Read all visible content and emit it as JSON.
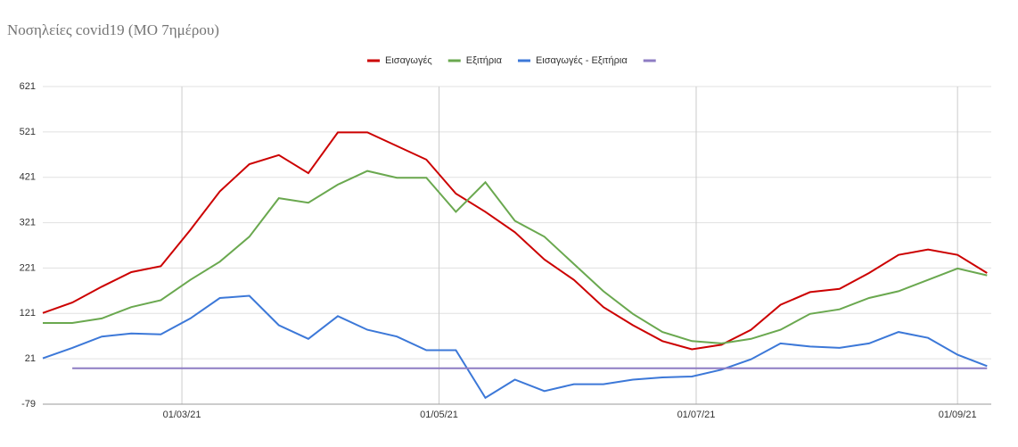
{
  "chart_data": {
    "type": "line",
    "title": "Νοσηλείες covid19 (ΜΟ 7ημέρου)",
    "x": [
      "27/01/21",
      "03/02/21",
      "10/02/21",
      "17/02/21",
      "24/02/21",
      "03/03/21",
      "10/03/21",
      "17/03/21",
      "24/03/21",
      "31/03/21",
      "07/04/21",
      "14/04/21",
      "21/04/21",
      "28/04/21",
      "05/05/21",
      "12/05/21",
      "19/05/21",
      "26/05/21",
      "02/06/21",
      "09/06/21",
      "16/06/21",
      "23/06/21",
      "30/06/21",
      "07/07/21",
      "14/07/21",
      "21/07/21",
      "28/07/21",
      "04/08/21",
      "11/08/21",
      "18/08/21",
      "25/08/21",
      "01/09/21",
      "08/09/21"
    ],
    "xlim": [
      "27/01/21",
      "09/09/21"
    ],
    "xticks": [
      "01/03/21",
      "01/05/21",
      "01/07/21",
      "01/09/21"
    ],
    "ylim": [
      -79,
      621
    ],
    "yticks": [
      -79,
      21,
      121,
      221,
      321,
      421,
      521,
      621
    ],
    "grid": true,
    "legend": "top",
    "series": [
      {
        "name": "Εισαγωγές",
        "color": "#cc0000",
        "values": [
          122,
          145,
          180,
          212,
          225,
          305,
          390,
          450,
          470,
          430,
          520,
          520,
          490,
          460,
          385,
          345,
          300,
          240,
          195,
          135,
          95,
          60,
          42,
          52,
          85,
          140,
          168,
          175,
          210,
          250,
          262,
          250,
          210
        ]
      },
      {
        "name": "Εξιτήρια",
        "color": "#6aa84f",
        "values": [
          100,
          100,
          110,
          135,
          150,
          195,
          235,
          290,
          375,
          365,
          405,
          435,
          420,
          420,
          345,
          410,
          325,
          290,
          230,
          170,
          120,
          80,
          60,
          55,
          65,
          85,
          120,
          130,
          155,
          170,
          195,
          220,
          205
        ]
      },
      {
        "name": "Εισαγωγές - Εξιτήρια",
        "color": "#3c78d8",
        "values": [
          22,
          45,
          70,
          77,
          75,
          110,
          155,
          160,
          95,
          65,
          115,
          85,
          70,
          40,
          40,
          -65,
          -25,
          -50,
          -35,
          -35,
          -25,
          -20,
          -18,
          -3,
          20,
          55,
          48,
          45,
          55,
          80,
          67,
          30,
          5
        ]
      },
      {
        "color": "#8e7cc3",
        "values": [
          null,
          0,
          0,
          0,
          0,
          0,
          0,
          0,
          0,
          0,
          0,
          0,
          0,
          0,
          0,
          0,
          0,
          0,
          0,
          0,
          0,
          0,
          0,
          0,
          0,
          0,
          0,
          0,
          0,
          0,
          0,
          0,
          0
        ]
      }
    ]
  }
}
